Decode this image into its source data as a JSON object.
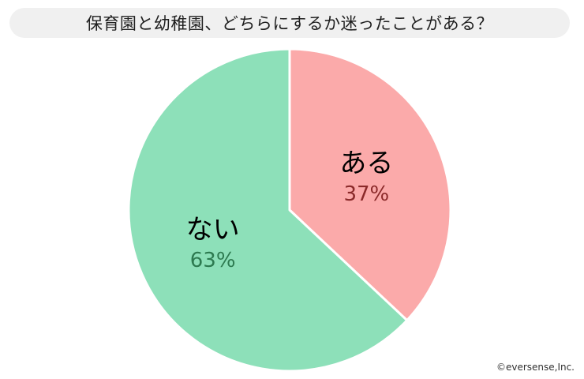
{
  "title": "保育園と幼稚園、どちらにするか迷ったことがある？",
  "credit": "©eversense,Inc.",
  "chart_data": {
    "type": "pie",
    "slices": [
      {
        "label": "ある",
        "value": 37,
        "value_label": "37%",
        "color": "#fbaaaa",
        "label_color": "#000000",
        "value_color": "#8b2a2a"
      },
      {
        "label": "ない",
        "value": 63,
        "value_label": "63%",
        "color": "#8de0b9",
        "label_color": "#000000",
        "value_color": "#2d7a50"
      }
    ],
    "start": "top",
    "direction": "clockwise",
    "border_color": "#ffffff"
  }
}
